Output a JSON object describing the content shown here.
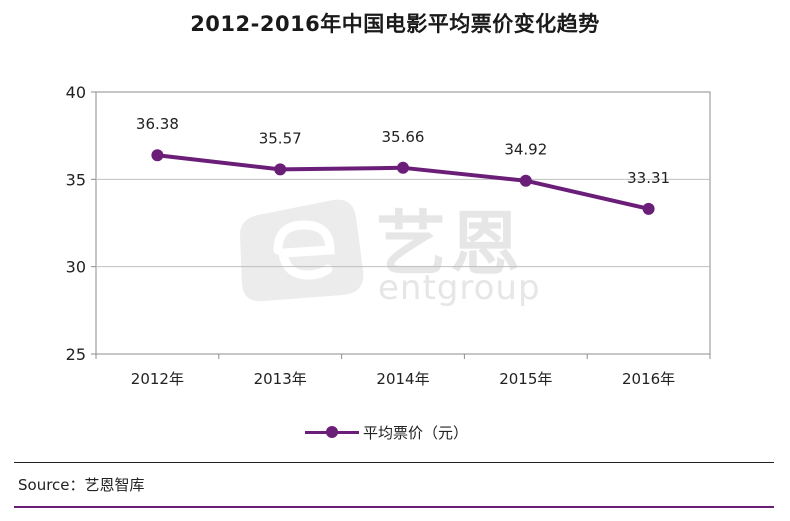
{
  "chart_data": {
    "type": "line",
    "title": "2012-2016年中国电影平均票价变化趋势",
    "categories": [
      "2012年",
      "2013年",
      "2014年",
      "2015年",
      "2016年"
    ],
    "series": [
      {
        "name": "平均票价（元）",
        "values": [
          36.38,
          35.57,
          35.66,
          34.92,
          33.31
        ],
        "color": "#6b1e78"
      }
    ],
    "data_labels": [
      "36.38",
      "35.57",
      "35.66",
      "34.92",
      "33.31"
    ],
    "y_ticks": [
      25,
      30,
      35,
      40
    ],
    "ylim": [
      25,
      40
    ],
    "grid": true,
    "legend_position": "bottom"
  },
  "source": "Source：艺恩智库",
  "watermark": {
    "cn": "艺恩",
    "en": "entgroup"
  },
  "colors": {
    "series": "#6b1e78",
    "grid": "#bfbfbf",
    "axis": "#8c8c8c"
  }
}
